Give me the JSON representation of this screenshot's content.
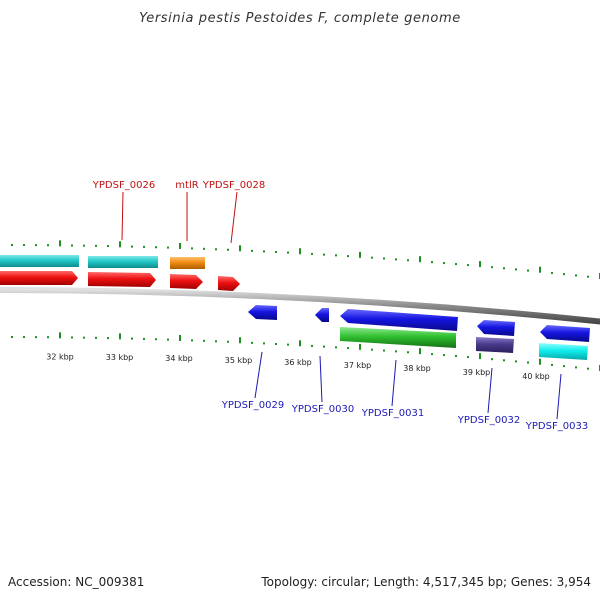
{
  "title": "Yersinia pestis Pestoides F, complete genome",
  "footer": {
    "accession": "Accession: NC_009381",
    "summary": "Topology: circular; Length: 4,517,345 bp; Genes: 3,954"
  },
  "scale_labels": [
    "32 kbp",
    "33 kbp",
    "34 kbp",
    "35 kbp",
    "36 kbp",
    "37 kbp",
    "38 kbp",
    "39 kbp",
    "40 kbp"
  ],
  "labels_top": [
    "YPDSF_0026",
    "mtlR",
    "YPDSF_0028"
  ],
  "labels_bottom": [
    "YPDSF_0029",
    "YPDSF_0030",
    "YPDSF_0031",
    "YPDSF_0032",
    "YPDSF_0033"
  ],
  "colors": {
    "backbone": "#8a8a8a",
    "ticks": "#1f8f1f",
    "cds_forward": "#ee1111",
    "gene_cyan": "#22c8c8",
    "gene_orange": "#f08c14",
    "cds_reverse": "#1515e0",
    "gene_green": "#30c030",
    "gene_purple": "#4b3a8c",
    "gene_aqua": "#10ecec",
    "label_top": "#c01010",
    "label_bottom": "#1a1ab4"
  }
}
